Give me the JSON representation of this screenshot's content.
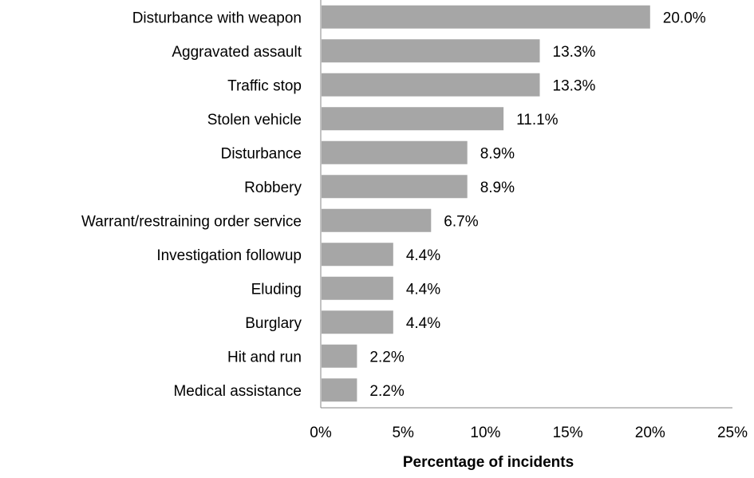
{
  "chart_data": {
    "type": "bar",
    "orientation": "horizontal",
    "title": "",
    "xlabel": "Percentage of incidents",
    "ylabel": "",
    "categories": [
      "Disturbance with weapon",
      "Aggravated assault",
      "Traffic stop",
      "Stolen vehicle",
      "Disturbance",
      "Robbery",
      "Warrant/restraining order service",
      "Investigation followup",
      "Eluding",
      "Burglary",
      "Hit and run",
      "Medical assistance"
    ],
    "values": [
      20.0,
      13.3,
      13.3,
      11.1,
      8.9,
      8.9,
      6.7,
      4.4,
      4.4,
      4.4,
      2.2,
      2.2
    ],
    "value_labels": [
      "20.0%",
      "13.3%",
      "13.3%",
      "11.1%",
      "8.9%",
      "8.9%",
      "6.7%",
      "4.4%",
      "4.4%",
      "4.4%",
      "2.2%",
      "2.2%"
    ],
    "xlim": [
      0,
      25
    ],
    "xticks": [
      0,
      5,
      10,
      15,
      20,
      25
    ],
    "xtick_labels": [
      "0%",
      "5%",
      "10%",
      "15%",
      "20%",
      "25%"
    ],
    "grid": false,
    "legend": "none",
    "bar_color": "#a6a6a6",
    "axis_color": "#868686"
  }
}
